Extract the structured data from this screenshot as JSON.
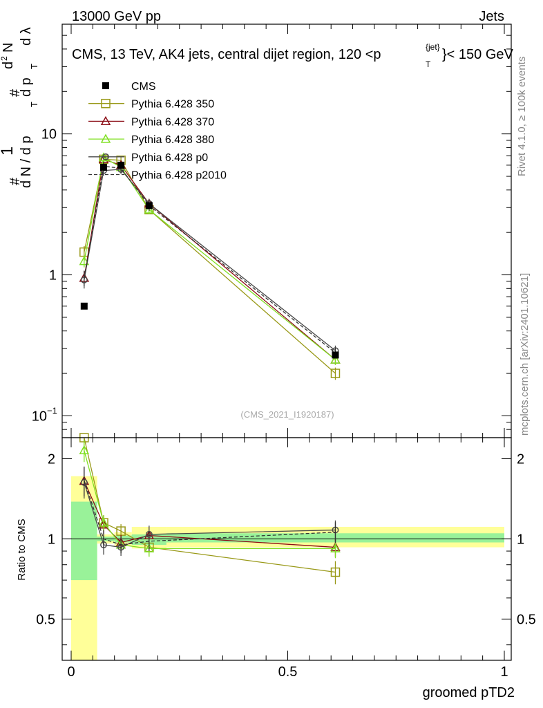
{
  "header": {
    "left": "13000 GeV pp",
    "right": "Jets",
    "title": "CMS, 13 TeV, AK4 jets, central dijet region, 120 <p",
    "title_sup": "{jet}",
    "title_sub": "T",
    "title_end": "}< 150 GeV"
  },
  "side": {
    "top_label": "Rivet 4.1.0, ≥ 100k events",
    "bottom_label": "mcplots.cern.ch [arXiv:2401.10621]"
  },
  "watermark": "(CMS_2021_I1920187)",
  "axes": {
    "x_label": "groomed pTD2",
    "ratio_label": "Ratio to CMS",
    "y_label_parts": [
      "#",
      "1",
      "d N / d p",
      "T",
      "#",
      "d p",
      "T",
      "d",
      "2",
      "N",
      "d λ"
    ],
    "main_ticks": [
      {
        "v": 0.1,
        "label": "10"
      },
      {
        "v": 1,
        "label": "1"
      },
      {
        "v": 10,
        "label": "10"
      }
    ],
    "main_tick_exp": {
      "label": "−1"
    },
    "ratio_ticks": [
      {
        "v": 0.5,
        "label": "0.5"
      },
      {
        "v": 1,
        "label": "1"
      },
      {
        "v": 2,
        "label": "2"
      }
    ],
    "x_ticks": [
      {
        "v": 0,
        "label": "0"
      },
      {
        "v": 0.5,
        "label": "0.5"
      },
      {
        "v": 1,
        "label": "1"
      }
    ]
  },
  "legend": [
    {
      "name": "CMS",
      "color": "#000000",
      "marker": "filled-square",
      "dash": false
    },
    {
      "name": "Pythia 6.428 350",
      "color": "#999918",
      "marker": "open-square",
      "dash": false
    },
    {
      "name": "Pythia 6.428 370",
      "color": "#8b0d16",
      "marker": "open-triangle",
      "dash": false
    },
    {
      "name": "Pythia 6.428 380",
      "color": "#80e023",
      "marker": "open-triangle",
      "dash": false
    },
    {
      "name": "Pythia 6.428 p0",
      "color": "#4a4a4a",
      "marker": "open-circle",
      "dash": false
    },
    {
      "name": "Pythia 6.428 p2010",
      "color": "#333333",
      "marker": "none",
      "dash": true
    }
  ],
  "chart_data": {
    "type": "line",
    "x_range": [
      0,
      1
    ],
    "y_range_main": [
      0.07,
      60
    ],
    "y_scale_main": "log",
    "y_range_ratio": [
      0.35,
      2.4
    ],
    "y_scale_ratio": "log",
    "data": {
      "name": "CMS",
      "x": [
        0.03,
        0.075,
        0.115,
        0.18,
        0.61
      ],
      "y": [
        0.6,
        5.8,
        6.0,
        3.1,
        0.27
      ]
    },
    "bins": [
      0,
      0.06,
      0.1,
      0.14,
      0.22,
      1.0
    ],
    "series": [
      {
        "name": "Pythia 6.428 350",
        "x": [
          0.03,
          0.075,
          0.115,
          0.18,
          0.61
        ],
        "y": [
          1.45,
          6.6,
          6.5,
          2.9,
          0.2
        ],
        "yerr": [
          0.15,
          0.45,
          0.4,
          0.2,
          0.02
        ],
        "ratio": [
          2.4,
          1.15,
          1.07,
          0.93,
          0.75
        ]
      },
      {
        "name": "Pythia 6.428 370",
        "x": [
          0.03,
          0.075,
          0.115,
          0.18,
          0.61
        ],
        "y": [
          0.95,
          6.6,
          6.0,
          3.2,
          0.25
        ],
        "yerr": [
          0.12,
          0.5,
          0.4,
          0.25,
          0.02
        ],
        "ratio": [
          1.65,
          1.13,
          0.97,
          1.03,
          0.93
        ]
      },
      {
        "name": "Pythia 6.428 380",
        "x": [
          0.03,
          0.075,
          0.115,
          0.18,
          0.61
        ],
        "y": [
          1.25,
          6.8,
          5.8,
          2.9,
          0.25
        ],
        "yerr": [
          0.12,
          0.45,
          0.35,
          0.2,
          0.02
        ],
        "ratio": [
          2.15,
          1.15,
          0.95,
          0.92,
          0.92
        ]
      },
      {
        "name": "Pythia 6.428 p0",
        "x": [
          0.03,
          0.075,
          0.115,
          0.18,
          0.61
        ],
        "y": [
          0.92,
          5.5,
          5.6,
          3.2,
          0.29
        ],
        "yerr": [
          0.12,
          0.45,
          0.4,
          0.25,
          0.025
        ],
        "ratio": [
          1.63,
          0.95,
          0.93,
          1.04,
          1.08
        ]
      },
      {
        "name": "Pythia 6.428 p2010",
        "x": [
          0.03,
          0.075,
          0.115,
          0.18,
          0.61
        ],
        "y": [
          0.95,
          5.9,
          5.7,
          3.1,
          0.28
        ],
        "yerr": [
          0.12,
          0.45,
          0.4,
          0.25,
          0.025
        ],
        "ratio": [
          1.66,
          1.0,
          0.95,
          0.98,
          1.06
        ]
      }
    ],
    "ratio_bands": {
      "inner": [
        [
          0.7,
          1.38
        ],
        [
          0.98,
          1.02
        ],
        [
          0.97,
          1.03
        ],
        [
          0.95,
          1.04
        ],
        [
          0.97,
          1.05
        ]
      ],
      "outer": [
        [
          0.25,
          1.72
        ],
        [
          0.96,
          1.04
        ],
        [
          0.94,
          1.06
        ],
        [
          0.92,
          1.11
        ],
        [
          0.93,
          1.11
        ]
      ]
    }
  }
}
